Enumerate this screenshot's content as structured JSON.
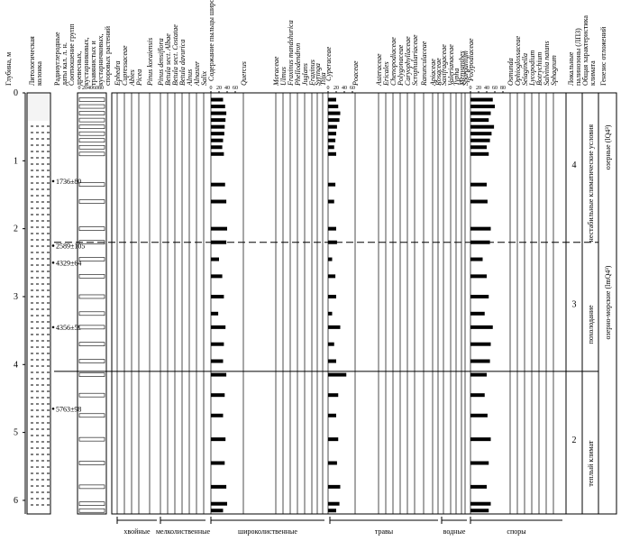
{
  "chart_data": {
    "type": "pollen",
    "y_label": "Глубина, м",
    "ylim": [
      0,
      6.2
    ],
    "yticks": [
      0,
      1,
      2,
      3,
      4,
      5,
      6
    ],
    "column_headers": {
      "lithology": [
        "Литологическая",
        "колонка"
      ],
      "dates": [
        "Радиоуглеродные",
        "даты кал. л. н."
      ],
      "ratio": [
        "Соотношение групп",
        "древесных,",
        "кустарниковых,",
        "травянистых и",
        "кустарничковых,",
        "споровых растений"
      ],
      "zones": [
        "Локальные",
        "палинозоны (ЛПЗ)"
      ],
      "climate": [
        "Общая характеристика",
        "климата"
      ],
      "genesis": [
        "Генезис отложений"
      ]
    },
    "ratio_ticks": [
      0,
      20,
      40,
      60,
      80
    ],
    "dates": [
      {
        "depth": 1.3,
        "label": "1736±80"
      },
      {
        "depth": 2.25,
        "label": "2589±105"
      },
      {
        "depth": 2.5,
        "label": "4329±64"
      },
      {
        "depth": 3.45,
        "label": "4356±59"
      },
      {
        "depth": 4.65,
        "label": "5763±98"
      }
    ],
    "depths": [
      0.1,
      0.2,
      0.3,
      0.4,
      0.5,
      0.6,
      0.7,
      0.8,
      0.9,
      1.35,
      1.6,
      2.0,
      2.2,
      2.45,
      2.7,
      3.0,
      3.25,
      3.45,
      3.7,
      3.95,
      4.15,
      4.45,
      4.75,
      5.1,
      5.45,
      5.8,
      6.05,
      6.15
    ],
    "columns": [
      {
        "name": "Ephedra"
      },
      {
        "name": "Cupressaceae"
      },
      {
        "name": "Abies"
      },
      {
        "name": "Picea"
      },
      {
        "name": "Pinus koraiensis"
      },
      {
        "name": "Pinus densiflora"
      },
      {
        "name": "Betula sect. Albae"
      },
      {
        "name": "Betula sect. Costatae"
      },
      {
        "name": "Betula davurica"
      },
      {
        "name": "Alnus"
      },
      {
        "name": "Alnaster"
      },
      {
        "name": "Salix"
      },
      {
        "name": "Содержание пыльцы широколиственных растений",
        "xticks": [
          0,
          20,
          40,
          60
        ],
        "values": [
          30,
          35,
          38,
          36,
          34,
          33,
          30,
          28,
          32,
          35,
          38,
          40,
          38,
          20,
          28,
          32,
          18,
          36,
          32,
          30,
          38,
          34,
          30,
          36,
          34,
          38,
          40,
          30
        ]
      },
      {
        "name": "Quercus"
      },
      {
        "name": "Moraceae"
      },
      {
        "name": "Ulmus"
      },
      {
        "name": "Fraxinus mandshurica"
      },
      {
        "name": "Phellodendron"
      },
      {
        "name": "Juglans"
      },
      {
        "name": "Fraxinus"
      },
      {
        "name": "Syringa"
      },
      {
        "name": "Tilia"
      },
      {
        "name": "Cyperaceae",
        "xticks": [
          0,
          20,
          40,
          60
        ],
        "values": [
          20,
          25,
          30,
          28,
          22,
          20,
          18,
          15,
          20,
          18,
          15,
          20,
          22,
          10,
          18,
          20,
          10,
          30,
          15,
          20,
          45,
          25,
          20,
          25,
          22,
          30,
          28,
          20
        ]
      },
      {
        "name": "Poaceae"
      },
      {
        "name": "Asteraceae"
      },
      {
        "name": "Ericales"
      },
      {
        "name": "Chenopodiaceae"
      },
      {
        "name": "Polygonaceae"
      },
      {
        "name": "Caryophyllaceae"
      },
      {
        "name": "Scrophulariaceae"
      },
      {
        "name": "Ranunculaceae"
      },
      {
        "name": "Apiaceae"
      },
      {
        "name": "Rosaceae"
      },
      {
        "name": "Saxifragaceae"
      },
      {
        "name": "Valerianaceae"
      },
      {
        "name": "Typha"
      },
      {
        "name": "Menyanthes"
      },
      {
        "name": "Sparganium"
      },
      {
        "name": "Polypodiaceae",
        "xticks": [
          0,
          20,
          40,
          60,
          80
        ],
        "values": [
          55,
          60,
          50,
          45,
          58,
          52,
          48,
          40,
          45,
          40,
          42,
          50,
          48,
          30,
          40,
          45,
          35,
          55,
          50,
          48,
          40,
          35,
          42,
          50,
          45,
          40,
          50,
          45
        ]
      },
      {
        "name": "Osmunda"
      },
      {
        "name": "Ophioglossaceae"
      },
      {
        "name": "Selaginella"
      },
      {
        "name": "Lycopodium"
      },
      {
        "name": "Botrychium"
      },
      {
        "name": "Salvinia natans"
      },
      {
        "name": "Sphagnum"
      }
    ],
    "zone_boundaries": [
      2.2,
      4.1
    ],
    "zones": [
      {
        "label": "4",
        "depth": 1.1
      },
      {
        "label": "3",
        "depth": 3.15
      },
      {
        "label": "2",
        "depth": 5.15
      }
    ],
    "climate": [
      {
        "label": "нестабильные климатические условия",
        "depth": 1.4
      },
      {
        "label": "похолодание",
        "depth": 2.9
      },
      {
        "label": "теплый климат",
        "depth": 5.0
      }
    ],
    "genesis": [
      {
        "label": "озерные (lQ4³)",
        "depth": 0.6
      },
      {
        "label": "озерно-морские (lmQ4³)",
        "depth": 3.1
      }
    ],
    "groups": [
      "хвойные",
      "мелколиственные",
      "широколиственные",
      "травы",
      "водные",
      "споры"
    ]
  }
}
